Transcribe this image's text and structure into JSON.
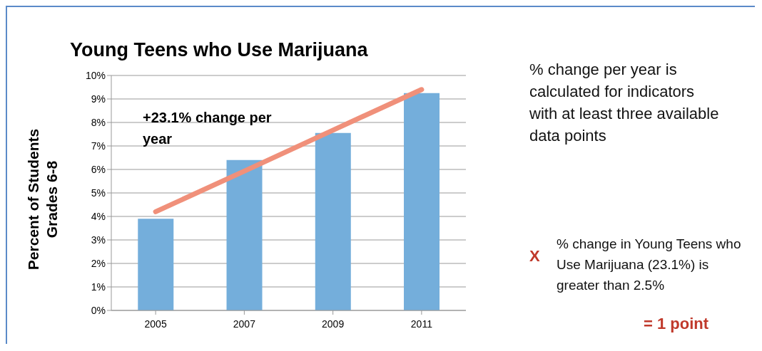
{
  "chart_data": {
    "type": "bar",
    "title": "Young Teens who Use Marijuana",
    "ylabel": "Percent of Students Grades 6-8",
    "categories": [
      "2005",
      "2007",
      "2009",
      "2011"
    ],
    "series": [
      {
        "color": "#74aedb",
        "values": [
          3.9,
          6.4,
          7.55,
          9.25
        ]
      },
      {
        "type": "line",
        "color": "#f0907a",
        "values": [
          4.2,
          5.93,
          7.67,
          9.4
        ]
      }
    ],
    "ylim": [
      0,
      10
    ],
    "yticks": [
      {
        "value": 0,
        "label": "0%"
      },
      {
        "value": 1,
        "label": "1%"
      },
      {
        "value": 2,
        "label": "2%"
      },
      {
        "value": 3,
        "label": "3%"
      },
      {
        "value": 4,
        "label": "4%"
      },
      {
        "value": 5,
        "label": "5%"
      },
      {
        "value": 6,
        "label": "6%"
      },
      {
        "value": 7,
        "label": "7%"
      },
      {
        "value": 8,
        "label": "8%"
      },
      {
        "value": 9,
        "label": "9%"
      },
      {
        "value": 10,
        "label": "10%"
      }
    ],
    "grid": "y",
    "legend": false,
    "marker": "none",
    "annotations": [
      "+23.1% change per year",
      "% change per year is calculated for indicators with at least three available data points",
      "X",
      "% change in Young Teens who Use Marijuana (23.1%) is greater than 2.5%",
      "= 1 point"
    ]
  }
}
